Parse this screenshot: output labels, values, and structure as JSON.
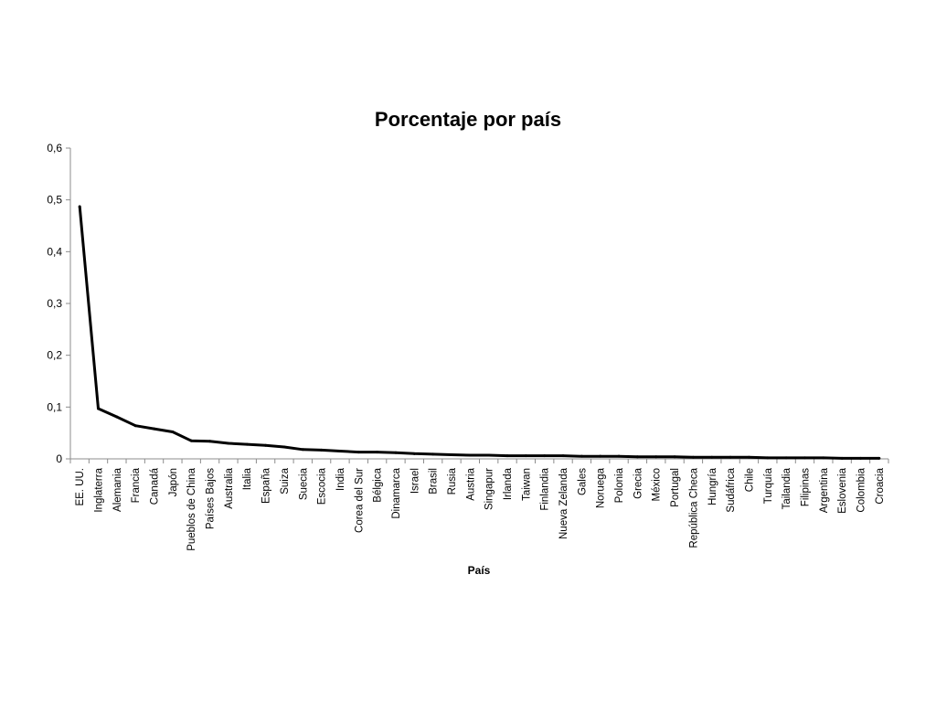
{
  "chart_data": {
    "type": "line",
    "title": "Porcentaje por país",
    "xlabel": "País",
    "ylabel": "",
    "ylim": [
      0,
      0.6
    ],
    "yticks": [
      "0",
      "0,1",
      "0,2",
      "0,3",
      "0,4",
      "0,5",
      "0,6"
    ],
    "grid": false,
    "legend": "none",
    "categories": [
      "EE. UU.",
      "Inglaterra",
      "Alemania",
      "Francia",
      "Canadá",
      "Japón",
      "Pueblos de China",
      "Países Bajos",
      "Australia",
      "Italia",
      "España",
      "Suiza",
      "Suecia",
      "Escocia",
      "India",
      "Corea del Sur",
      "Bélgica",
      "Dinamarca",
      "Israel",
      "Brasil",
      "Rusia",
      "Austria",
      "Singapur",
      "Irlanda",
      "Taiwan",
      "Finlandia",
      "Nueva Zelanda",
      "Gales",
      "Noruega",
      "Polonia",
      "Grecia",
      "México",
      "Portugal",
      "República Checa",
      "Hungría",
      "Sudáfrica",
      "Chile",
      "Turquía",
      "Tailandia",
      "Filipinas",
      "Argentina",
      "Eslovenia",
      "Colombia",
      "Croacia"
    ],
    "values": [
      0.487,
      0.097,
      0.081,
      0.064,
      0.058,
      0.052,
      0.035,
      0.034,
      0.03,
      0.028,
      0.026,
      0.023,
      0.018,
      0.017,
      0.015,
      0.013,
      0.013,
      0.012,
      0.01,
      0.009,
      0.008,
      0.007,
      0.007,
      0.006,
      0.006,
      0.006,
      0.006,
      0.005,
      0.005,
      0.005,
      0.004,
      0.004,
      0.004,
      0.003,
      0.003,
      0.003,
      0.003,
      0.002,
      0.002,
      0.002,
      0.002,
      0.001,
      0.001,
      0.001
    ],
    "line_color": "#000000",
    "axis_color": "#8c8c8c"
  }
}
